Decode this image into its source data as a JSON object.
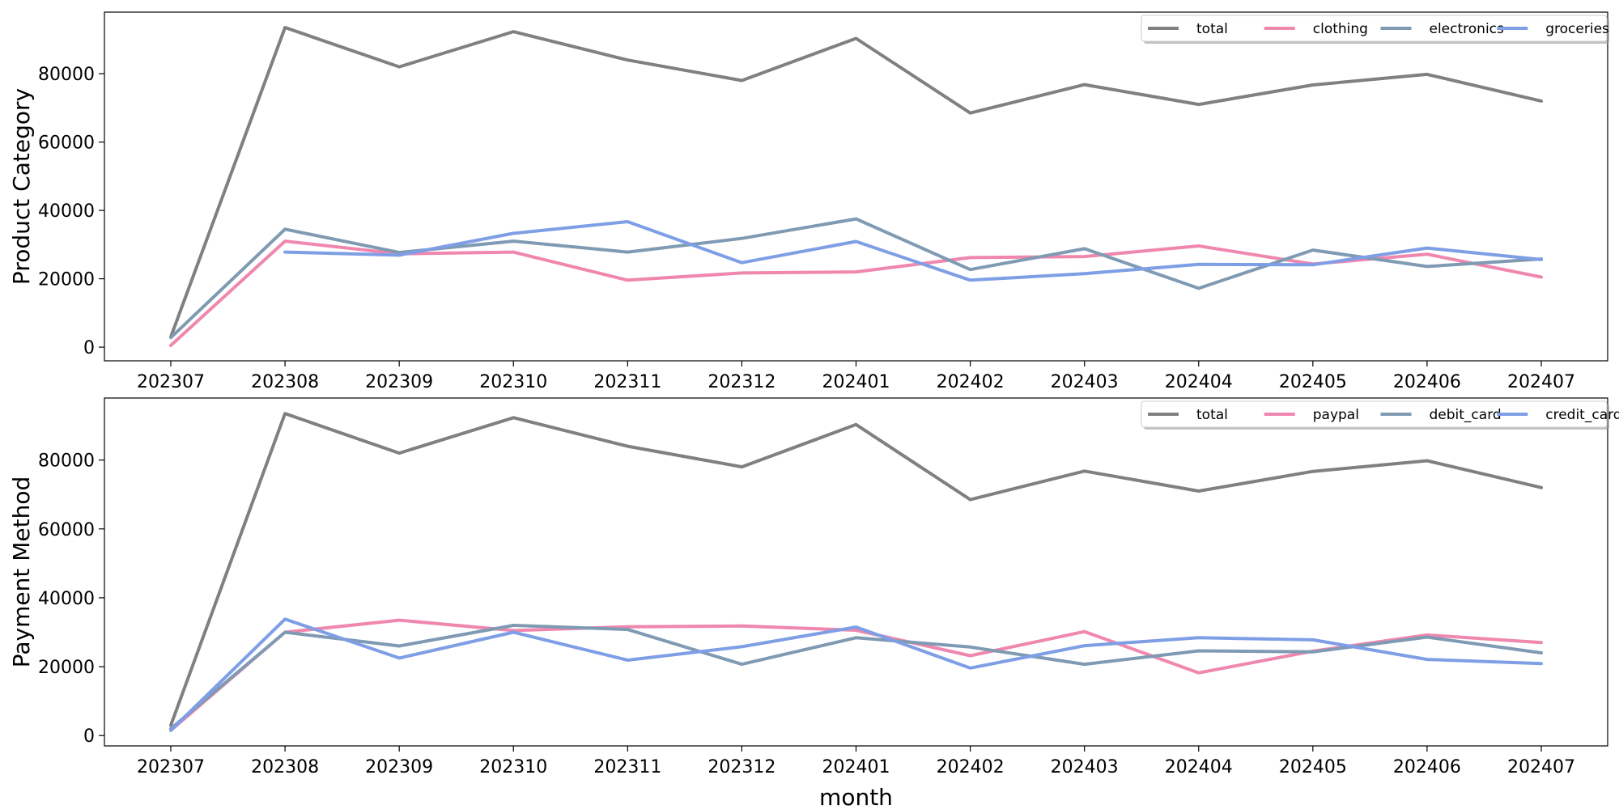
{
  "chart_data": [
    {
      "type": "line",
      "title": "",
      "xlabel": "",
      "ylabel": "Product Category",
      "ylim": [
        -4000,
        98000
      ],
      "yticks": [
        0,
        20000,
        40000,
        60000,
        80000
      ],
      "grid": false,
      "legend": "top-right",
      "categories": [
        "202307",
        "202308",
        "202309",
        "202310",
        "202311",
        "202312",
        "202401",
        "202402",
        "202403",
        "202404",
        "202405",
        "202406",
        "202407"
      ],
      "series": [
        {
          "name": "total",
          "color": "#808080",
          "values": [
            3000,
            93500,
            82000,
            92300,
            84000,
            78000,
            90300,
            68500,
            76800,
            71000,
            76700,
            79800,
            72000
          ]
        },
        {
          "name": "clothing",
          "color": "#ef87ae",
          "values": [
            500,
            31000,
            27300,
            27800,
            19600,
            21700,
            22000,
            26200,
            26500,
            29600,
            24300,
            27200,
            20500
          ]
        },
        {
          "name": "electronics",
          "color": "#7f9ab3",
          "values": [
            2800,
            34500,
            27700,
            31000,
            27800,
            31800,
            37500,
            22700,
            28800,
            17200,
            28400,
            23600,
            25800
          ]
        },
        {
          "name": "groceries",
          "color": "#7e9ee5",
          "values": [
            null,
            27800,
            26900,
            33300,
            36700,
            24700,
            30900,
            19600,
            21500,
            24200,
            24100,
            29000,
            25600
          ]
        }
      ]
    },
    {
      "type": "line",
      "title": "",
      "xlabel": "month",
      "ylabel": "Payment Method",
      "ylim": [
        -3000,
        98000
      ],
      "yticks": [
        0,
        20000,
        40000,
        60000,
        80000
      ],
      "grid": false,
      "legend": "top-right",
      "categories": [
        "202307",
        "202308",
        "202309",
        "202310",
        "202311",
        "202312",
        "202401",
        "202402",
        "202403",
        "202404",
        "202405",
        "202406",
        "202407"
      ],
      "series": [
        {
          "name": "total",
          "color": "#808080",
          "values": [
            3000,
            93500,
            82000,
            92300,
            84000,
            78000,
            90300,
            68500,
            76800,
            71000,
            76700,
            79800,
            72000
          ]
        },
        {
          "name": "paypal",
          "color": "#ef87ae",
          "values": [
            1500,
            30000,
            33500,
            30500,
            31600,
            31800,
            30600,
            23200,
            30200,
            18200,
            24500,
            29200,
            27000
          ]
        },
        {
          "name": "debit_card",
          "color": "#7f9ab3",
          "values": [
            2000,
            30000,
            26000,
            32000,
            30800,
            20700,
            28400,
            25700,
            20700,
            24600,
            24300,
            28600,
            24000
          ]
        },
        {
          "name": "credit_card",
          "color": "#7e9ee5",
          "values": [
            1500,
            33800,
            22500,
            30000,
            21900,
            25800,
            31500,
            19600,
            26100,
            28400,
            27800,
            22100,
            20900
          ]
        }
      ]
    }
  ]
}
